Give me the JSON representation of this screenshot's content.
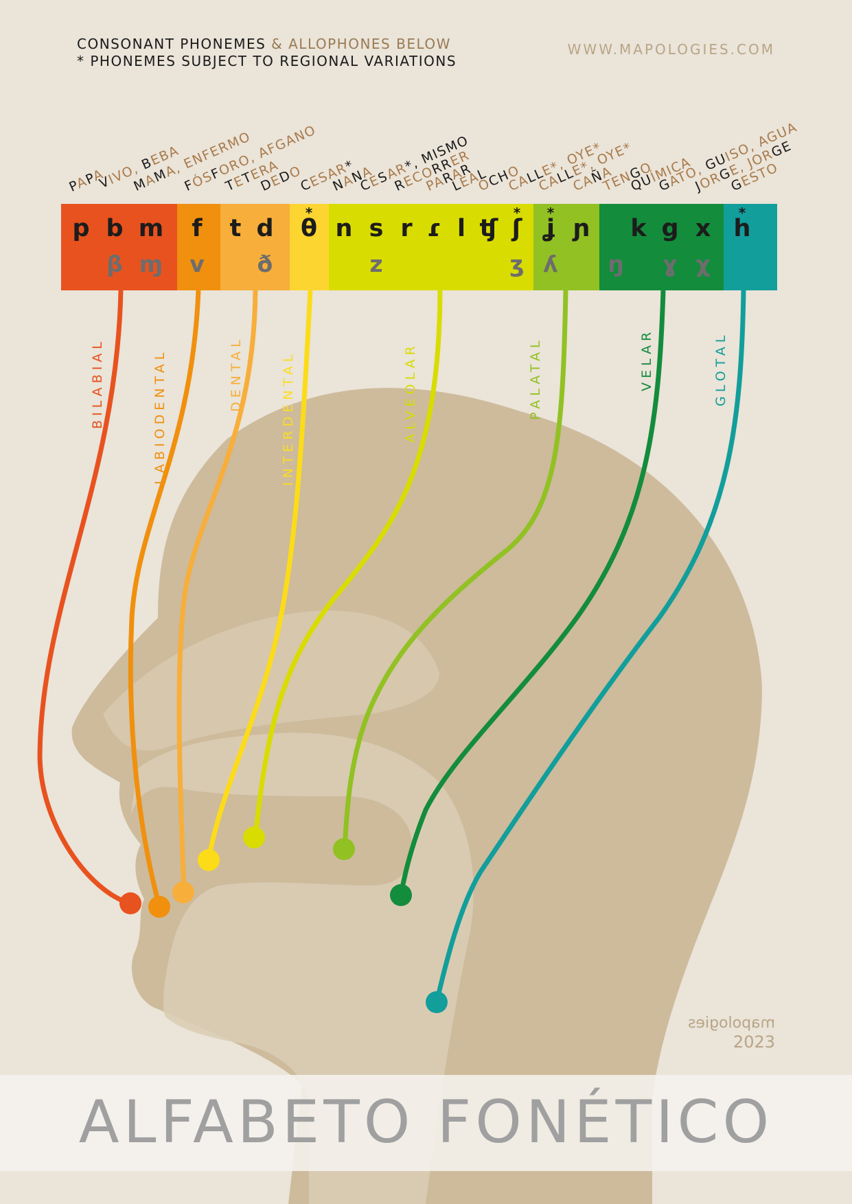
{
  "header": {
    "line1_main": "CONSONANT PHONEMES",
    "line1_accent": "& ALLOPHONES BELOW",
    "line2": "* PHONEMES SUBJECT TO REGIONAL VARIATIONS",
    "website": "WWW.MAPOLOGIES.COM"
  },
  "examples": [
    {
      "pre": "P",
      "b": "A",
      "post": "P",
      "b2": "A",
      "post2": ""
    },
    {
      "pre": "V",
      "b": "IVO, ",
      "post": "B",
      "b2": "EBA",
      "post2": ""
    },
    {
      "pre": "M",
      "b": "A",
      "post": "M",
      "b2": "A, ENFERMO",
      "post2": ""
    },
    {
      "pre": "F",
      "b": "ÓS",
      "post": "F",
      "b2": "ORO, AFGANO",
      "post2": ""
    },
    {
      "pre": "T",
      "b": "E",
      "post": "T",
      "b2": "ERA",
      "post2": ""
    },
    {
      "pre": "D",
      "b": "E",
      "post": "D",
      "b2": "O",
      "post2": ""
    },
    {
      "pre": "C",
      "b": "ESAR",
      "post": "*",
      "b2": "",
      "post2": ""
    },
    {
      "pre": "N",
      "b": "A",
      "post": "N",
      "b2": "A",
      "post2": ""
    },
    {
      "pre": "C",
      "b": "E",
      "post": "S",
      "b2": "AR",
      "post2": "*, MISMO"
    },
    {
      "pre": "R",
      "b": "ECO",
      "post": "RR",
      "b2": "ER",
      "post2": ""
    },
    {
      "pre": "",
      "b": "PA",
      "post": "R",
      "b2": "A",
      "post2": "R"
    },
    {
      "pre": "L",
      "b": "EA",
      "post": "L",
      "b2": "",
      "post2": ""
    },
    {
      "pre": "",
      "b": "O",
      "post": "CH",
      "b2": "O",
      "post2": ""
    },
    {
      "pre": "",
      "b": "CA",
      "post": "LL",
      "b2": "E*, OYE*",
      "post2": ""
    },
    {
      "pre": "",
      "b": "CA",
      "post": "LL",
      "b2": "E*, OYE*",
      "post2": ""
    },
    {
      "pre": "",
      "b": "CA",
      "post": "Ñ",
      "b2": "A",
      "post2": ""
    },
    {
      "pre": "",
      "b": "TEN",
      "post": "G",
      "b2": "O",
      "post2": ""
    },
    {
      "pre": "",
      "b": "",
      "post": "QU",
      "b2": "ÍMICA",
      "post2": ""
    },
    {
      "pre": "G",
      "b": "ATO, ",
      "post": "GU",
      "b2": "ISO, AGUA",
      "post2": ""
    },
    {
      "pre": "J",
      "b": "OR",
      "post": "G",
      "b2": "E, JOR",
      "post2": "GE"
    },
    {
      "pre": "",
      "b": "",
      "post": "G",
      "b2": "ESTO",
      "post2": ""
    }
  ],
  "phonemes": [
    "p",
    "b",
    "m",
    "f",
    "t",
    "d",
    "θ",
    "n",
    "s",
    "r",
    "ɾ",
    "l",
    "ʧ",
    "ʃ",
    "ʝ",
    "ɲ",
    "k",
    "g",
    "x",
    "h"
  ],
  "phoneme_stars": [
    "",
    "",
    "",
    "",
    "",
    "",
    "*",
    "",
    "",
    "",
    "",
    "",
    "",
    "*",
    "*",
    "",
    "",
    "",
    "",
    "*"
  ],
  "allophones": [
    "β",
    "ɱ",
    "v",
    "ð",
    "z",
    "ʒ",
    "ʎ",
    "ŋ",
    "ɣ",
    "χ"
  ],
  "places": [
    {
      "label": "BILABIAL",
      "color": "#e8521f"
    },
    {
      "label": "LABIODENTAL",
      "color": "#f0900e"
    },
    {
      "label": "DENTAL",
      "color": "#f7ae3a"
    },
    {
      "label": "INTERDENTAL",
      "color": "#fbdd1f"
    },
    {
      "label": "ALVEOLAR",
      "color": "#d9dc00"
    },
    {
      "label": "PALATAL",
      "color": "#92c123"
    },
    {
      "label": "VELAR",
      "color": "#138c3c"
    },
    {
      "label": "GLOTAL",
      "color": "#129e9b"
    }
  ],
  "title": "ALFABETO FONÉTICO",
  "signature": {
    "logo": "mapologies",
    "year": "2023"
  }
}
